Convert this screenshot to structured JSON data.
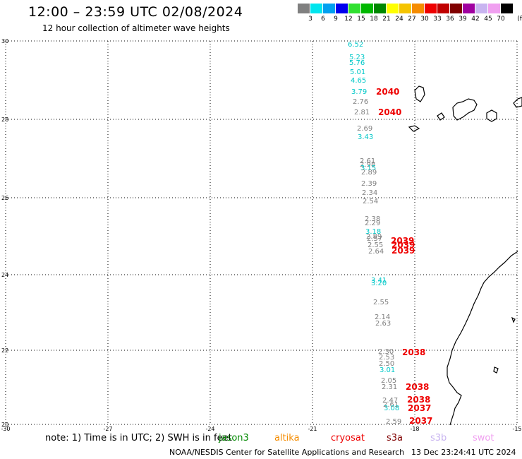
{
  "title": "12:00 – 23:59 UTC 02/08/2024",
  "subtitle": "12 hour collection of altimeter wave heights",
  "legend": {
    "unit": "(ft)",
    "bins": [
      {
        "label": "3",
        "color": "#808080"
      },
      {
        "label": "6",
        "color": "#00e5ee"
      },
      {
        "label": "9",
        "color": "#00a0f0"
      },
      {
        "label": "12",
        "color": "#0000ee"
      },
      {
        "label": "15",
        "color": "#30e030"
      },
      {
        "label": "18",
        "color": "#00b800"
      },
      {
        "label": "21",
        "color": "#008800"
      },
      {
        "label": "24",
        "color": "#ffff00"
      },
      {
        "label": "27",
        "color": "#f5c400"
      },
      {
        "label": "30",
        "color": "#f58c00"
      },
      {
        "label": "33",
        "color": "#ee0000"
      },
      {
        "label": "36",
        "color": "#c00000"
      },
      {
        "label": "39",
        "color": "#800000"
      },
      {
        "label": "42",
        "color": "#a000a0"
      },
      {
        "label": "45",
        "color": "#c8b4f0"
      },
      {
        "label": "70",
        "color": "#f0a0f0"
      },
      {
        "label": "",
        "color": "#000000"
      }
    ]
  },
  "map": {
    "lat_ticks": [
      "30",
      "28",
      "26",
      "24",
      "22",
      "20"
    ],
    "lon_ticks": [
      "-30",
      "-27",
      "-24",
      "-21",
      "-18",
      "-15"
    ],
    "wave_heights": [
      {
        "v": "6.52",
        "c": "#00c8c8"
      },
      {
        "v": "5.23",
        "c": "#00c8c8"
      },
      {
        "v": "5.76",
        "c": "#00c8c8"
      },
      {
        "v": "5.01",
        "c": "#00c8c8"
      },
      {
        "v": "4.65",
        "c": "#00c8c8"
      },
      {
        "v": "3.79",
        "c": "#00c8c8"
      },
      {
        "v": "2.76",
        "c": "#808080"
      },
      {
        "v": "2.81",
        "c": "#808080"
      },
      {
        "v": "2.69",
        "c": "#808080"
      },
      {
        "v": "3.43",
        "c": "#00c8c8"
      },
      {
        "v": "2.61",
        "c": "#808080"
      },
      {
        "v": "2.98",
        "c": "#808080"
      },
      {
        "v": "3.15",
        "c": "#00c8c8"
      },
      {
        "v": "2.89",
        "c": "#808080"
      },
      {
        "v": "2.39",
        "c": "#808080"
      },
      {
        "v": "2.34",
        "c": "#808080"
      },
      {
        "v": "2.54",
        "c": "#808080"
      },
      {
        "v": "2.38",
        "c": "#808080"
      },
      {
        "v": "2.29",
        "c": "#808080"
      },
      {
        "v": "3.18",
        "c": "#00c8c8"
      },
      {
        "v": "2.89",
        "c": "#808080"
      },
      {
        "v": "2.57",
        "c": "#808080"
      },
      {
        "v": "2.55",
        "c": "#808080"
      },
      {
        "v": "2.64",
        "c": "#808080"
      },
      {
        "v": "3.41",
        "c": "#00c8c8"
      },
      {
        "v": "3.20",
        "c": "#00c8c8"
      },
      {
        "v": "2.55",
        "c": "#808080"
      },
      {
        "v": "2.14",
        "c": "#808080"
      },
      {
        "v": "2.63",
        "c": "#808080"
      },
      {
        "v": "2.30",
        "c": "#808080"
      },
      {
        "v": "2.53",
        "c": "#808080"
      },
      {
        "v": "2.50",
        "c": "#808080"
      },
      {
        "v": "3.01",
        "c": "#00c8c8"
      },
      {
        "v": "2.05",
        "c": "#808080"
      },
      {
        "v": "2.31",
        "c": "#808080"
      },
      {
        "v": "2.47",
        "c": "#808080"
      },
      {
        "v": "2.61",
        "c": "#808080"
      },
      {
        "v": "3.08",
        "c": "#00c8c8"
      },
      {
        "v": "2.59",
        "c": "#808080"
      }
    ],
    "time_labels": [
      "2040",
      "2040",
      "2039",
      "2039",
      "2039",
      "2038",
      "2038",
      "2038",
      "2037",
      "2037"
    ]
  },
  "note": {
    "text": "note: 1) Time is in UTC; 2) SWH is in feet",
    "satellites": [
      {
        "name": "jason3",
        "color": "#008800"
      },
      {
        "name": "altika",
        "color": "#f58c00"
      },
      {
        "name": "cryosat",
        "color": "#ee0000"
      },
      {
        "name": "s3a",
        "color": "#800000"
      },
      {
        "name": "s3b",
        "color": "#c8b4f0"
      },
      {
        "name": "swot",
        "color": "#f0a0f0"
      }
    ]
  },
  "footer": "NOAA/NESDIS Center for Satellite Applications and Research",
  "timestamp": "13 Dec 23:24:41 UTC 2024"
}
